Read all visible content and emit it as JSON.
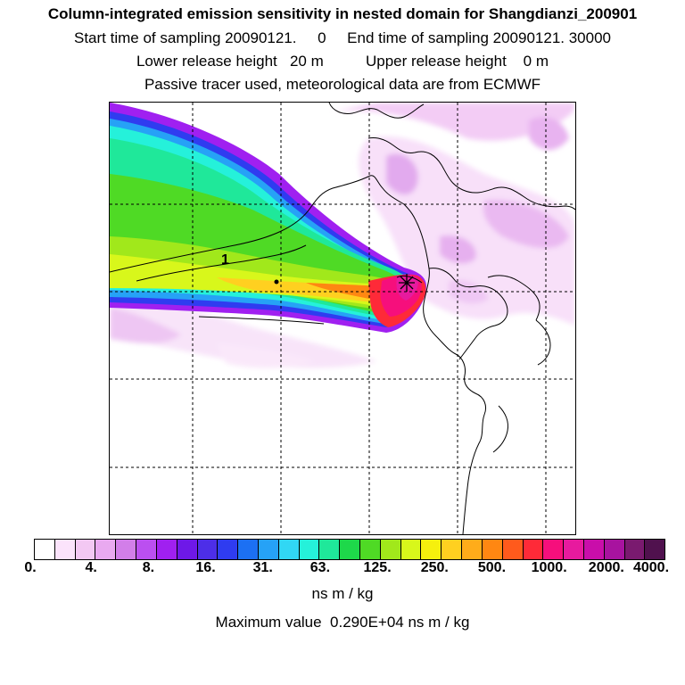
{
  "header": {
    "title": "Column-integrated emission sensitivity in nested domain for Shangdianzi_200901",
    "sampling": "Start time of sampling 20090121.     0     End time of sampling 20090121. 30000",
    "release": "Lower release height   20 m          Upper release height    0 m",
    "tracer": "Passive tracer used, meteorological data are from ECMWF"
  },
  "map": {
    "contour_label": "1",
    "receptor_marker": "star-icon"
  },
  "colorbar": {
    "colors": [
      "#ffffff",
      "#fbe3fb",
      "#f3c8f3",
      "#e9a9f0",
      "#d27ee9",
      "#bb4ff0",
      "#a020f0",
      "#6e18e8",
      "#4d2ee8",
      "#2f3cf0",
      "#1c70f3",
      "#26a2f6",
      "#31d7f4",
      "#25f1da",
      "#1fe89a",
      "#1ed84a",
      "#4fda25",
      "#a1e81b",
      "#d8f71b",
      "#f6f00d",
      "#ffd020",
      "#ffac1a",
      "#ff8712",
      "#ff5a1c",
      "#fe2a38",
      "#f60f7c",
      "#e71a9e",
      "#c90eaa",
      "#a8139f",
      "#7a1a6f",
      "#50114e"
    ],
    "tick_labels": [
      "0.",
      "4.",
      "8.",
      "16.",
      "31.",
      "63.",
      "125.",
      "250.",
      "500.",
      "1000.",
      "2000.",
      "4000."
    ],
    "unit": "ns m / kg"
  },
  "max_value": "Maximum value  0.290E+04 ns m / kg"
}
